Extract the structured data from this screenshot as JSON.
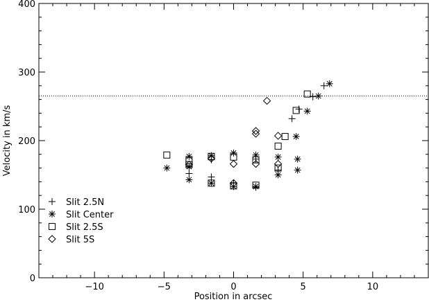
{
  "chart_data": {
    "type": "scatter",
    "title": "",
    "xlabel": "Position in arcsec",
    "ylabel": "Velocity in km/s",
    "xlim": [
      -14,
      14
    ],
    "ylim": [
      0,
      400
    ],
    "xticks": [
      -10,
      -5,
      0,
      5,
      10
    ],
    "xtick_labels": [
      "−10",
      "−5",
      "0",
      "5",
      "10"
    ],
    "xminor_step": 1,
    "yticks": [
      0,
      100,
      200,
      300,
      400
    ],
    "ytick_labels": [
      "0",
      "100",
      "200",
      "300",
      "400"
    ],
    "yminor_step": 20,
    "grid": false,
    "legend_position": "bottom-left",
    "reference_line": {
      "y": 265,
      "style": "dotted"
    },
    "series": [
      {
        "name": "Slit 2.5N",
        "marker": "plus",
        "points": [
          [
            -3.2,
            152
          ],
          [
            -1.6,
            147
          ],
          [
            -1.6,
            172
          ],
          [
            0,
            138
          ],
          [
            1.6,
            132
          ],
          [
            1.6,
            173
          ],
          [
            3.2,
            157
          ],
          [
            4.2,
            232
          ],
          [
            4.7,
            246
          ],
          [
            5.7,
            264
          ],
          [
            6.5,
            280
          ]
        ]
      },
      {
        "name": "Slit Center",
        "marker": "asterisk",
        "points": [
          [
            -4.8,
            160
          ],
          [
            -3.2,
            143
          ],
          [
            -3.2,
            162
          ],
          [
            -3.2,
            177
          ],
          [
            -1.6,
            138
          ],
          [
            -1.6,
            178
          ],
          [
            0,
            133
          ],
          [
            0,
            182
          ],
          [
            1.6,
            133
          ],
          [
            1.6,
            179
          ],
          [
            3.2,
            150
          ],
          [
            3.2,
            176
          ],
          [
            4.6,
            157
          ],
          [
            4.6,
            173
          ],
          [
            4.5,
            206
          ],
          [
            5.3,
            243
          ],
          [
            6.1,
            265
          ],
          [
            6.9,
            283
          ]
        ]
      },
      {
        "name": "Slit 2.5S",
        "marker": "square",
        "points": [
          [
            -4.8,
            179
          ],
          [
            -3.2,
            165
          ],
          [
            -3.2,
            171
          ],
          [
            -1.6,
            138
          ],
          [
            -1.6,
            177
          ],
          [
            0,
            134
          ],
          [
            0,
            176
          ],
          [
            1.6,
            135
          ],
          [
            1.6,
            172
          ],
          [
            3.2,
            160
          ],
          [
            3.2,
            192
          ],
          [
            3.7,
            206
          ],
          [
            4.5,
            244
          ],
          [
            5.3,
            268
          ]
        ]
      },
      {
        "name": "Slit 5S",
        "marker": "diamond",
        "points": [
          [
            -3.2,
            165
          ],
          [
            -1.6,
            174
          ],
          [
            0,
            166
          ],
          [
            0,
            138
          ],
          [
            1.6,
            166
          ],
          [
            1.6,
            210
          ],
          [
            1.6,
            214
          ],
          [
            3.2,
            166
          ],
          [
            3.2,
            207
          ],
          [
            2.4,
            258
          ]
        ]
      }
    ]
  }
}
